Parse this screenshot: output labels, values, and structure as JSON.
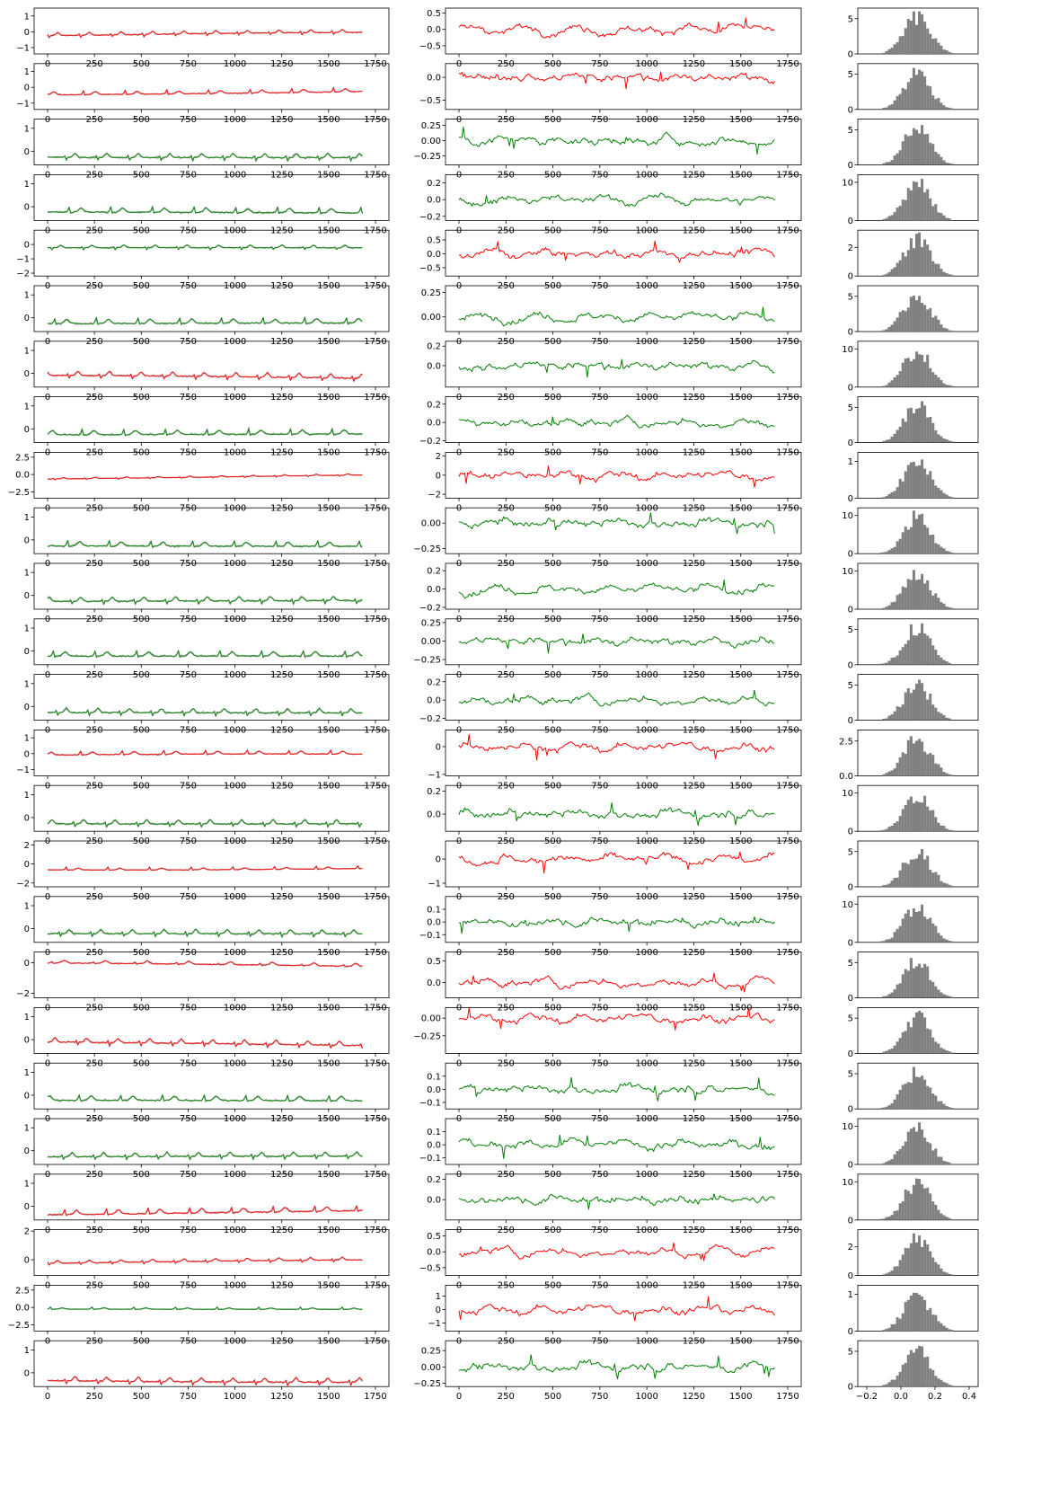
{
  "figure": {
    "background": "#ffffff",
    "axis_color": "#000000",
    "colors": {
      "normal": "#008000",
      "anomalous": "#ff0000",
      "original_trace": "#808080",
      "histogram": "#808080"
    }
  },
  "chart_data": {
    "type": "grid_of_subplots",
    "rows": 25,
    "columns": [
      "signal_overlay",
      "residual_line",
      "residual_histogram"
    ],
    "row_classes": [
      "red",
      "red",
      "green",
      "green",
      "green",
      "green",
      "red",
      "green",
      "red",
      "green",
      "green",
      "green",
      "green",
      "red",
      "green",
      "red",
      "green",
      "red",
      "red",
      "green",
      "green",
      "red",
      "red",
      "green",
      "red"
    ],
    "residual_colors": [
      "red",
      "red",
      "green",
      "green",
      "red",
      "green",
      "green",
      "green",
      "red",
      "green",
      "green",
      "green",
      "green",
      "red",
      "green",
      "red",
      "green",
      "red",
      "red",
      "green",
      "green",
      "green",
      "red",
      "red",
      "green"
    ],
    "signal_x_ticks": [
      "0",
      "250",
      "500",
      "750",
      "1000",
      "1250",
      "1500",
      "1750"
    ],
    "residual_x_ticks": [
      "0",
      "250",
      "500",
      "750",
      "1000",
      "1250",
      "1500",
      "1750"
    ],
    "hist_x_ticks_last": [
      "−0.2",
      "0.0",
      "0.2",
      "0.4"
    ],
    "subplots": [
      {
        "row": 1,
        "signal_y": [
          "1",
          "0",
          "−1"
        ],
        "signal_ylim": [
          -1.4,
          1.5
        ],
        "res_y": [
          "0.5",
          "0.0",
          "−0.5"
        ],
        "res_ylim": [
          -0.75,
          0.65
        ],
        "hist_y": [
          "5",
          "0"
        ],
        "hist_ylim": [
          0,
          6.5
        ]
      },
      {
        "row": 2,
        "signal_y": [
          "1",
          "0",
          "−1"
        ],
        "signal_ylim": [
          -1.4,
          1.5
        ],
        "res_y": [
          "0.0",
          "−0.5"
        ],
        "res_ylim": [
          -0.7,
          0.3
        ],
        "hist_y": [
          "5",
          "0"
        ],
        "hist_ylim": [
          0,
          6.5
        ]
      },
      {
        "row": 3,
        "signal_y": [
          "1",
          "0"
        ],
        "signal_ylim": [
          -0.6,
          1.4
        ],
        "res_y": [
          "0.25",
          "0.00",
          "−0.25"
        ],
        "res_ylim": [
          -0.4,
          0.35
        ],
        "hist_y": [
          "5",
          "0"
        ],
        "hist_ylim": [
          0,
          6.5
        ]
      },
      {
        "row": 4,
        "signal_y": [
          "1",
          "0"
        ],
        "signal_ylim": [
          -0.6,
          1.4
        ],
        "res_y": [
          "0.2",
          "0.0",
          "−0.2"
        ],
        "res_ylim": [
          -0.25,
          0.3
        ],
        "hist_y": [
          "10",
          "0"
        ],
        "hist_ylim": [
          0,
          12
        ]
      },
      {
        "row": 5,
        "signal_y": [
          "0",
          "−1",
          "−2"
        ],
        "signal_ylim": [
          -2.2,
          1.0
        ],
        "res_y": [
          "0.5",
          "0.0",
          "−0.5"
        ],
        "res_ylim": [
          -0.8,
          0.85
        ],
        "hist_y": [
          "2",
          "0"
        ],
        "hist_ylim": [
          0,
          3.2
        ]
      },
      {
        "row": 6,
        "signal_y": [
          "1",
          "0"
        ],
        "signal_ylim": [
          -0.6,
          1.4
        ],
        "res_y": [
          "0.25",
          "0.00"
        ],
        "res_ylim": [
          -0.15,
          0.32
        ],
        "hist_y": [
          "5",
          "0"
        ],
        "hist_ylim": [
          0,
          6.5
        ]
      },
      {
        "row": 7,
        "signal_y": [
          "1",
          "0"
        ],
        "signal_ylim": [
          -0.6,
          1.4
        ],
        "res_y": [
          "0.2",
          "0.0"
        ],
        "res_ylim": [
          -0.22,
          0.25
        ],
        "hist_y": [
          "10",
          "0"
        ],
        "hist_ylim": [
          0,
          12
        ]
      },
      {
        "row": 8,
        "signal_y": [
          "1",
          "0"
        ],
        "signal_ylim": [
          -0.6,
          1.4
        ],
        "res_y": [
          "0.2",
          "0.0",
          "−0.2"
        ],
        "res_ylim": [
          -0.22,
          0.28
        ],
        "hist_y": [
          "5",
          "0"
        ],
        "hist_ylim": [
          0,
          6.5
        ]
      },
      {
        "row": 9,
        "signal_y": [
          "2.5",
          "0.0",
          "−2.5"
        ],
        "signal_ylim": [
          -3.4,
          3.2
        ],
        "res_y": [
          "2",
          "0",
          "−2"
        ],
        "res_ylim": [
          -2.4,
          2.4
        ],
        "hist_y": [
          "1",
          "0"
        ],
        "hist_ylim": [
          0,
          1.25
        ]
      },
      {
        "row": 10,
        "signal_y": [
          "1",
          "0"
        ],
        "signal_ylim": [
          -0.6,
          1.4
        ],
        "res_y": [
          "0.00",
          "−0.25"
        ],
        "res_ylim": [
          -0.3,
          0.15
        ],
        "hist_y": [
          "10",
          "0"
        ],
        "hist_ylim": [
          0,
          12
        ]
      },
      {
        "row": 11,
        "signal_y": [
          "1",
          "0"
        ],
        "signal_ylim": [
          -0.6,
          1.4
        ],
        "res_y": [
          "0.2",
          "0.0",
          "−0.2"
        ],
        "res_ylim": [
          -0.22,
          0.28
        ],
        "hist_y": [
          "10",
          "0"
        ],
        "hist_ylim": [
          0,
          12
        ]
      },
      {
        "row": 12,
        "signal_y": [
          "1",
          "0"
        ],
        "signal_ylim": [
          -0.6,
          1.4
        ],
        "res_y": [
          "0.25",
          "0.00",
          "−0.25"
        ],
        "res_ylim": [
          -0.32,
          0.3
        ],
        "hist_y": [
          "5",
          "0"
        ],
        "hist_ylim": [
          0,
          6.5
        ]
      },
      {
        "row": 13,
        "signal_y": [
          "1",
          "0"
        ],
        "signal_ylim": [
          -0.6,
          1.4
        ],
        "res_y": [
          "0.2",
          "0.0",
          "−0.2"
        ],
        "res_ylim": [
          -0.22,
          0.28
        ],
        "hist_y": [
          "5",
          "0"
        ],
        "hist_ylim": [
          0,
          6.5
        ]
      },
      {
        "row": 14,
        "signal_y": [
          "1",
          "0",
          "−1"
        ],
        "signal_ylim": [
          -1.4,
          1.5
        ],
        "res_y": [
          "0",
          "−1"
        ],
        "res_ylim": [
          -1.05,
          0.6
        ],
        "hist_y": [
          "2.5",
          "0.0"
        ],
        "hist_ylim": [
          0,
          3.3
        ]
      },
      {
        "row": 15,
        "signal_y": [
          "1",
          "0"
        ],
        "signal_ylim": [
          -0.6,
          1.4
        ],
        "res_y": [
          "0.2",
          "0.0"
        ],
        "res_ylim": [
          -0.15,
          0.25
        ],
        "hist_y": [
          "10",
          "0"
        ],
        "hist_ylim": [
          0,
          12
        ]
      },
      {
        "row": 16,
        "signal_y": [
          "2",
          "0",
          "−2"
        ],
        "signal_ylim": [
          -2.4,
          2.4
        ],
        "res_y": [
          "0",
          "−1"
        ],
        "res_ylim": [
          -1.15,
          0.75
        ],
        "hist_y": [
          "5",
          "0"
        ],
        "hist_ylim": [
          0,
          6.5
        ]
      },
      {
        "row": 17,
        "signal_y": [
          "1",
          "0"
        ],
        "signal_ylim": [
          -0.6,
          1.4
        ],
        "res_y": [
          "0.1",
          "0.0",
          "−0.1"
        ],
        "res_ylim": [
          -0.16,
          0.2
        ],
        "hist_y": [
          "10",
          "0"
        ],
        "hist_ylim": [
          0,
          12
        ]
      },
      {
        "row": 18,
        "signal_y": [
          "0",
          "−2"
        ],
        "signal_ylim": [
          -2.3,
          0.7
        ],
        "res_y": [
          "0.5",
          "0.0"
        ],
        "res_ylim": [
          -0.35,
          0.7
        ],
        "hist_y": [
          "5",
          "0"
        ],
        "hist_ylim": [
          0,
          6.5
        ]
      },
      {
        "row": 19,
        "signal_y": [
          "1",
          "0"
        ],
        "signal_ylim": [
          -0.6,
          1.4
        ],
        "res_y": [
          "0.00",
          "−0.25"
        ],
        "res_ylim": [
          -0.5,
          0.15
        ],
        "hist_y": [
          "5",
          "0"
        ],
        "hist_ylim": [
          0,
          6.5
        ]
      },
      {
        "row": 20,
        "signal_y": [
          "1",
          "0"
        ],
        "signal_ylim": [
          -0.6,
          1.4
        ],
        "res_y": [
          "0.1",
          "0.0",
          "−0.1"
        ],
        "res_ylim": [
          -0.15,
          0.2
        ],
        "hist_y": [
          "5",
          "0"
        ],
        "hist_ylim": [
          0,
          6.5
        ]
      },
      {
        "row": 21,
        "signal_y": [
          "1",
          "0"
        ],
        "signal_ylim": [
          -0.6,
          1.4
        ],
        "res_y": [
          "0.1",
          "0.0",
          "−0.1"
        ],
        "res_ylim": [
          -0.15,
          0.2
        ],
        "hist_y": [
          "10",
          "0"
        ],
        "hist_ylim": [
          0,
          12
        ]
      },
      {
        "row": 22,
        "signal_y": [
          "1",
          "0"
        ],
        "signal_ylim": [
          -0.6,
          1.4
        ],
        "res_y": [
          "0.2",
          "0.0"
        ],
        "res_ylim": [
          -0.2,
          0.25
        ],
        "hist_y": [
          "10",
          "0"
        ],
        "hist_ylim": [
          0,
          12
        ]
      },
      {
        "row": 23,
        "signal_y": [
          "2",
          "0"
        ],
        "signal_ylim": [
          -1.1,
          2.1
        ],
        "res_y": [
          "0.5",
          "0.0",
          "−0.5"
        ],
        "res_ylim": [
          -0.75,
          0.7
        ],
        "hist_y": [
          "2",
          "0"
        ],
        "hist_ylim": [
          0,
          3.2
        ]
      },
      {
        "row": 24,
        "signal_y": [
          "2.5",
          "0.0",
          "−2.5"
        ],
        "signal_ylim": [
          -3.4,
          3.2
        ],
        "res_y": [
          "1",
          "0",
          "−1"
        ],
        "res_ylim": [
          -1.6,
          1.8
        ],
        "hist_y": [
          "1",
          "0"
        ],
        "hist_ylim": [
          0,
          1.25
        ]
      },
      {
        "row": 25,
        "signal_y": [
          "1",
          "0"
        ],
        "signal_ylim": [
          -0.6,
          1.4
        ],
        "res_y": [
          "0.25",
          "0.00",
          "−0.25"
        ],
        "res_ylim": [
          -0.3,
          0.4
        ],
        "hist_y": [
          "5",
          "0"
        ],
        "hist_ylim": [
          0,
          6.5
        ]
      }
    ]
  }
}
